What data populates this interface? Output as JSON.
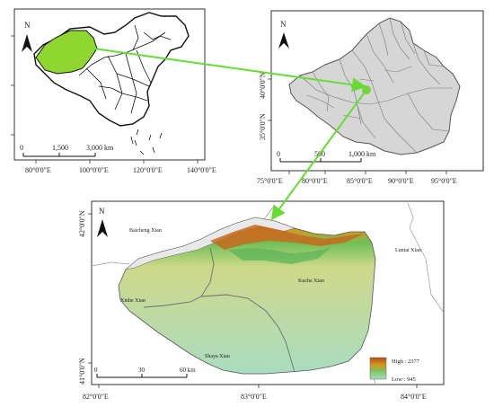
{
  "map1": {
    "north": "N",
    "lon_ticks": [
      "80°0'0\"E",
      "100°0'0\"E",
      "120°0'0\"E",
      "140°0'0\"E"
    ],
    "scale": [
      "0",
      "1,500",
      "3,000 km"
    ]
  },
  "map2": {
    "north": "N",
    "lat_ticks": [
      "40°0'0\"N",
      "35°0'0\"N"
    ],
    "lon_ticks": [
      "75°0'0\"E",
      "80°0'0\"E",
      "85°0'0\"E",
      "90°0'0\"E",
      "95°0'0\"E"
    ],
    "scale": [
      "0",
      "500",
      "1,000 km"
    ]
  },
  "map3": {
    "north": "N",
    "lat_ticks": [
      "42°0'0\"N",
      "41°0'0\"N"
    ],
    "lon_ticks": [
      "82°0'0\"E",
      "83°0'0\"E",
      "84°0'0\"E"
    ],
    "counties": [
      "Baicheng Xian",
      "Luntai Xian",
      "Kuche Xian",
      "Xinhe Xian",
      "Shaya Xian"
    ],
    "scale": [
      "0",
      "30",
      "60 km"
    ],
    "legend": {
      "high": "High : 2377",
      "low": "Low : 945"
    }
  },
  "colors": {
    "highlight": "#8fd631",
    "arrow": "#66dd33",
    "region_fill": "#d6d6d6",
    "low_elev": "#a8dcc0",
    "mid_elev": "#cfd98a",
    "high_elev": "#b84a16"
  }
}
